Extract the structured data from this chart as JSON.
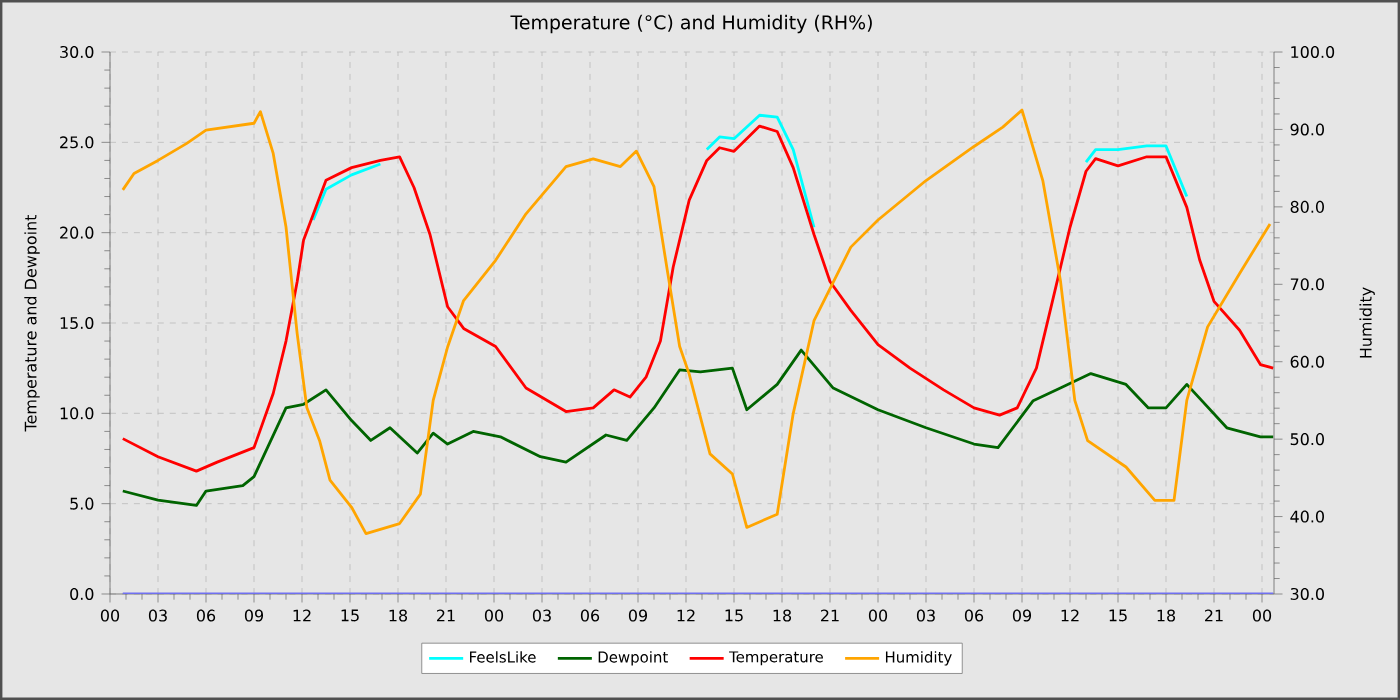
{
  "chart_data": {
    "type": "line",
    "title": "Temperature (°C) and Humidity (RH%)",
    "ylabel": "Temperature and Dewpoint",
    "y2label": "Humidity",
    "xlim": [
      0,
      72.75
    ],
    "ylim": [
      0,
      30
    ],
    "y2lim": [
      30,
      100
    ],
    "xticks": [
      {
        "value": 0,
        "label": "00"
      },
      {
        "value": 3,
        "label": "03"
      },
      {
        "value": 6,
        "label": "06"
      },
      {
        "value": 9,
        "label": "09"
      },
      {
        "value": 12,
        "label": "12"
      },
      {
        "value": 15,
        "label": "15"
      },
      {
        "value": 18,
        "label": "18"
      },
      {
        "value": 21,
        "label": "21"
      },
      {
        "value": 24,
        "label": "00"
      },
      {
        "value": 27,
        "label": "03"
      },
      {
        "value": 30,
        "label": "06"
      },
      {
        "value": 33,
        "label": "09"
      },
      {
        "value": 36,
        "label": "12"
      },
      {
        "value": 39,
        "label": "15"
      },
      {
        "value": 42,
        "label": "18"
      },
      {
        "value": 45,
        "label": "21"
      },
      {
        "value": 48,
        "label": "00"
      },
      {
        "value": 51,
        "label": "03"
      },
      {
        "value": 54,
        "label": "06"
      },
      {
        "value": 57,
        "label": "09"
      },
      {
        "value": 60,
        "label": "12"
      },
      {
        "value": 63,
        "label": "15"
      },
      {
        "value": 66,
        "label": "18"
      },
      {
        "value": 69,
        "label": "21"
      },
      {
        "value": 72,
        "label": "00"
      }
    ],
    "yticks": [
      {
        "value": 0,
        "label": "0.0"
      },
      {
        "value": 5,
        "label": "5.0"
      },
      {
        "value": 10,
        "label": "10.0"
      },
      {
        "value": 15,
        "label": "15.0"
      },
      {
        "value": 20,
        "label": "20.0"
      },
      {
        "value": 25,
        "label": "25.0"
      },
      {
        "value": 30,
        "label": "30.0"
      }
    ],
    "y2ticks": [
      {
        "value": 30,
        "label": "30.0"
      },
      {
        "value": 40,
        "label": "40.0"
      },
      {
        "value": 50,
        "label": "50.0"
      },
      {
        "value": 60,
        "label": "60.0"
      },
      {
        "value": 70,
        "label": "70.0"
      },
      {
        "value": 80,
        "label": "80.0"
      },
      {
        "value": 90,
        "label": "90.0"
      },
      {
        "value": 100,
        "label": "100.0"
      }
    ],
    "grid": true,
    "legend": "bottom",
    "series": [
      {
        "color": "#7070f0",
        "x": [
          0.8,
          72.7
        ],
        "values": [
          0,
          0
        ]
      },
      {
        "name": "FeelsLike",
        "color": "#00ffff",
        "x": [
          12.7,
          13.5,
          15.1,
          16.9
        ],
        "values": [
          20.7,
          22.4,
          23.2,
          23.8
        ]
      },
      {
        "color": "#00ffff",
        "x": [
          37.3,
          38.1,
          39,
          40.6,
          41.7,
          42.7,
          44
        ],
        "values": [
          24.6,
          25.3,
          25.2,
          26.5,
          26.4,
          24.6,
          20.3
        ]
      },
      {
        "color": "#00ffff",
        "x": [
          61,
          61.6,
          63,
          64.8,
          66,
          67.3
        ],
        "values": [
          23.9,
          24.6,
          24.6,
          24.8,
          24.8,
          22.0
        ]
      },
      {
        "name": "Dewpoint",
        "color": "#006400",
        "x": [
          0.8,
          3,
          5.4,
          6,
          8.3,
          9,
          11,
          12.1,
          13.5,
          15.1,
          16.3,
          17.5,
          19.2,
          20.2,
          21.1,
          22.7,
          24.4,
          26.9,
          28.5,
          31,
          32.3,
          34,
          35.6,
          36.9,
          38.9,
          39.8,
          41.7,
          43.2,
          45.2,
          48,
          51,
          54,
          55.5,
          57.7,
          59.4,
          61.3,
          63.5,
          64.9,
          66,
          67.3,
          69.8,
          71.9,
          72.7
        ],
        "values": [
          5.7,
          5.2,
          4.9,
          5.7,
          6.0,
          6.5,
          10.3,
          10.5,
          11.3,
          9.6,
          8.5,
          9.2,
          7.8,
          8.9,
          8.3,
          9.0,
          8.7,
          7.6,
          7.3,
          8.8,
          8.5,
          10.3,
          12.4,
          12.3,
          12.5,
          10.2,
          11.6,
          13.5,
          11.4,
          10.2,
          9.2,
          8.3,
          8.1,
          10.7,
          11.4,
          12.2,
          11.6,
          10.3,
          10.3,
          11.6,
          9.2,
          8.7,
          8.7
        ]
      },
      {
        "name": "Temperature",
        "color": "#ff0000",
        "x": [
          0.8,
          3,
          5.4,
          6.7,
          9,
          10.2,
          11,
          11.7,
          12.1,
          12.7,
          13.5,
          15.1,
          16.9,
          18.1,
          19,
          20,
          21.1,
          22.1,
          24.1,
          26,
          28.5,
          30.2,
          31.5,
          32.5,
          33.5,
          34.4,
          35.2,
          36.2,
          37.3,
          38.1,
          39,
          40.6,
          41.7,
          42.7,
          44,
          45,
          46.3,
          48,
          50,
          52.1,
          54,
          55.6,
          56.7,
          57.9,
          58.9,
          60,
          61,
          61.6,
          63,
          64.8,
          66,
          67.3,
          68.1,
          69,
          70.6,
          71.9,
          72.7
        ],
        "values": [
          8.6,
          7.6,
          6.8,
          7.3,
          8.1,
          11.1,
          14.0,
          17.3,
          19.6,
          21.0,
          22.9,
          23.6,
          24.0,
          24.2,
          22.5,
          19.9,
          15.9,
          14.7,
          13.7,
          11.4,
          10.1,
          10.3,
          11.3,
          10.9,
          12.0,
          14.0,
          18.1,
          21.8,
          24.0,
          24.7,
          24.5,
          25.9,
          25.6,
          23.6,
          19.9,
          17.3,
          15.7,
          13.8,
          12.5,
          11.3,
          10.3,
          9.9,
          10.3,
          12.5,
          16.2,
          20.3,
          23.4,
          24.1,
          23.7,
          24.2,
          24.2,
          21.4,
          18.5,
          16.2,
          14.6,
          12.7,
          12.5
        ]
      },
      {
        "name": "Humidity",
        "color": "#ffa500",
        "axis": "y2",
        "x": [
          0.8,
          1.5,
          3,
          4.8,
          6,
          9,
          9.4,
          10.2,
          11,
          11.7,
          12.3,
          13.1,
          13.75,
          15.1,
          16,
          18.1,
          19.4,
          20.2,
          21.1,
          22.1,
          24.1,
          26,
          28.5,
          30.2,
          31.9,
          32.9,
          34,
          34.8,
          35.6,
          36.2,
          37.5,
          38.9,
          39.8,
          41.7,
          42.7,
          44,
          46.3,
          48,
          51,
          54,
          55.8,
          57,
          58.3,
          59.4,
          60.3,
          61.1,
          63.5,
          65.3,
          66.5,
          67.3,
          68.6,
          70.6,
          72.5
        ],
        "values": [
          82.2,
          84.3,
          86.0,
          88.2,
          89.9,
          90.8,
          92.3,
          86.9,
          77.4,
          63.6,
          54.1,
          49.8,
          44.7,
          41.2,
          37.8,
          39.1,
          42.9,
          55.0,
          61.9,
          67.9,
          73.1,
          79.1,
          85.2,
          86.2,
          85.2,
          87.2,
          82.6,
          72.2,
          62.0,
          58.4,
          48.1,
          45.5,
          38.6,
          40.3,
          53.3,
          65.3,
          74.8,
          78.3,
          83.4,
          87.8,
          90.3,
          92.5,
          83.4,
          70.5,
          55.0,
          49.8,
          46.4,
          42.1,
          42.1,
          55.0,
          64.5,
          71.4,
          77.8
        ]
      }
    ]
  }
}
